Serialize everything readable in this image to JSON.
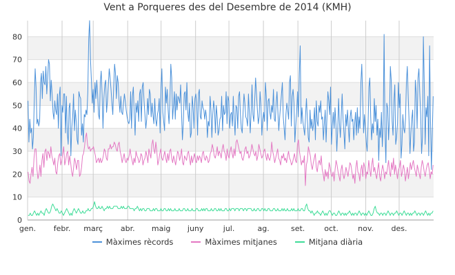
{
  "chart_data": {
    "type": "line",
    "title": "Vent a Porqueres des del Desembre de 2014 (KMH)",
    "xlabel": "",
    "ylabel": "",
    "ylim": [
      0,
      87
    ],
    "yticks": [
      0,
      10,
      20,
      30,
      40,
      50,
      60,
      70,
      80
    ],
    "grid": true,
    "legend_position": "bottom",
    "months": [
      "gen.",
      "febr.",
      "març",
      "abr.",
      "maig",
      "juny",
      "jul.",
      "ag.",
      "set.",
      "oct.",
      "nov.",
      "des."
    ],
    "x_description": "day of year (1-365)",
    "series": [
      {
        "name": "Màximes rècords",
        "color": "#4a90d9",
        "values": [
          52,
          34,
          44,
          38,
          40,
          31,
          36,
          52,
          66,
          58,
          42,
          44,
          41,
          43,
          60,
          64,
          53,
          65,
          60,
          59,
          67,
          55,
          62,
          70,
          68,
          52,
          61,
          55,
          47,
          44,
          52,
          48,
          46,
          55,
          40,
          54,
          58,
          28,
          50,
          47,
          55,
          55,
          38,
          54,
          38,
          33,
          49,
          51,
          28,
          40,
          45,
          55,
          39,
          48,
          43,
          35,
          33,
          56,
          54,
          53,
          37,
          42,
          34,
          46,
          45,
          48,
          46,
          56,
          79,
          88,
          70,
          61,
          51,
          57,
          47,
          60,
          53,
          61,
          55,
          46,
          44,
          60,
          65,
          55,
          40,
          53,
          59,
          61,
          47,
          52,
          59,
          66,
          62,
          57,
          51,
          46,
          58,
          68,
          64,
          53,
          63,
          60,
          52,
          47,
          54,
          47,
          46,
          51,
          55,
          52,
          48,
          45,
          43,
          42,
          44,
          56,
          40,
          54,
          58,
          46,
          37,
          51,
          47,
          52,
          43,
          55,
          57,
          43,
          58,
          60,
          52,
          46,
          40,
          44,
          53,
          46,
          57,
          55,
          45,
          51,
          46,
          42,
          53,
          44,
          41,
          46,
          48,
          53,
          38,
          58,
          66,
          47,
          43,
          39,
          58,
          51,
          57,
          48,
          42,
          52,
          68,
          62,
          44,
          50,
          56,
          44,
          55,
          48,
          54,
          53,
          51,
          59,
          47,
          35,
          42,
          55,
          56,
          48,
          60,
          47,
          43,
          51,
          36,
          38,
          54,
          49,
          40,
          53,
          55,
          51,
          37,
          55,
          57,
          45,
          44,
          52,
          49,
          48,
          44,
          48,
          45,
          36,
          43,
          41,
          54,
          48,
          36,
          46,
          52,
          48,
          38,
          50,
          45,
          37,
          39,
          44,
          45,
          54,
          39,
          50,
          46,
          47,
          56,
          42,
          54,
          52,
          40,
          46,
          47,
          41,
          54,
          44,
          37,
          50,
          49,
          40,
          54,
          56,
          46,
          40,
          38,
          47,
          55,
          51,
          45,
          44,
          41,
          55,
          47,
          38,
          47,
          59,
          46,
          43,
          52,
          62,
          55,
          48,
          42,
          45,
          56,
          50,
          37,
          44,
          47,
          43,
          60,
          54,
          39,
          52,
          53,
          47,
          44,
          50,
          47,
          57,
          44,
          43,
          51,
          56,
          47,
          39,
          45,
          50,
          55,
          60,
          45,
          40,
          35,
          46,
          51,
          48,
          44,
          60,
          63,
          41,
          54,
          57,
          51,
          34,
          41,
          47,
          56,
          45,
          64,
          76,
          42,
          49,
          43,
          40,
          37,
          46,
          53,
          44,
          36,
          34,
          48,
          40,
          44,
          39,
          42,
          49,
          35,
          52,
          43,
          41,
          50,
          47,
          52,
          44,
          45,
          35,
          42,
          48,
          34,
          45,
          56,
          52,
          46,
          58,
          33,
          41,
          47,
          40,
          49,
          42,
          30,
          39,
          53,
          42,
          36,
          46,
          55,
          44,
          38,
          31,
          46,
          41,
          48,
          40,
          34,
          45,
          48,
          43,
          44,
          35,
          42,
          47,
          37,
          49,
          38,
          45,
          40,
          60,
          68,
          53,
          38,
          46,
          40,
          34,
          30,
          41,
          58,
          62,
          45,
          35,
          42,
          38,
          53,
          43,
          50,
          37,
          44,
          26,
          40,
          36,
          47,
          32,
          42,
          81,
          39,
          25,
          51,
          49,
          35,
          44,
          67,
          61,
          43,
          37,
          52,
          59,
          33,
          36,
          42,
          60,
          49,
          55,
          27,
          33,
          46,
          40,
          38,
          44,
          60,
          67,
          54,
          43,
          29,
          38,
          44,
          48,
          30,
          34,
          61,
          55,
          40,
          62,
          66,
          55,
          46,
          29,
          36,
          80,
          60,
          33,
          49,
          45,
          54,
          28,
          76,
          43,
          22,
          38,
          54
        ]
      },
      {
        "name": "Màximes mitjanes",
        "color": "#e377c2",
        "values": [
          21,
          17,
          16,
          20,
          23,
          19,
          27,
          31,
          31,
          22,
          18,
          20,
          24,
          19,
          26,
          29,
          23,
          30,
          31,
          26,
          30,
          29,
          27,
          32,
          28,
          26,
          24,
          27,
          21,
          20,
          25,
          28,
          29,
          24,
          26,
          29,
          32,
          24,
          26,
          29,
          30,
          24,
          28,
          25,
          21,
          19,
          23,
          27,
          25,
          22,
          26,
          26,
          19,
          20,
          23,
          28,
          29,
          32,
          36,
          38,
          33,
          31,
          32,
          30,
          31,
          31,
          32,
          30,
          28,
          25,
          26,
          27,
          25,
          27,
          25,
          26,
          28,
          31,
          30,
          27,
          26,
          31,
          31,
          33,
          31,
          32,
          32,
          34,
          33,
          31,
          30,
          33,
          34,
          30,
          28,
          25,
          27,
          29,
          26,
          25,
          27,
          26,
          28,
          31,
          28,
          26,
          24,
          27,
          25,
          30,
          28,
          27,
          25,
          26,
          29,
          28,
          24,
          26,
          27,
          30,
          28,
          25,
          31,
          29,
          27,
          33,
          35,
          31,
          29,
          34,
          30,
          24,
          26,
          29,
          31,
          27,
          26,
          28,
          30,
          27,
          25,
          29,
          26,
          30,
          31,
          27,
          25,
          28,
          26,
          24,
          27,
          30,
          29,
          26,
          28,
          31,
          25,
          24,
          28,
          27,
          26,
          29,
          30,
          27,
          24,
          28,
          25,
          27,
          29,
          26,
          25,
          28,
          26,
          28,
          27,
          25,
          29,
          30,
          27,
          26,
          28,
          27,
          25,
          26,
          29,
          30,
          33,
          31,
          28,
          27,
          29,
          32,
          28,
          30,
          29,
          27,
          31,
          33,
          30,
          29,
          26,
          31,
          28,
          27,
          30,
          32,
          29,
          27,
          31,
          28,
          34,
          35,
          33,
          31,
          29,
          30,
          27,
          26,
          28,
          31,
          32,
          29,
          30,
          27,
          28,
          30,
          33,
          31,
          29,
          28,
          30,
          26,
          28,
          33,
          31,
          29,
          27,
          28,
          30,
          31,
          28,
          26,
          29,
          27,
          26,
          28,
          34,
          30,
          28,
          25,
          27,
          29,
          31,
          27,
          26,
          24,
          28,
          27,
          29,
          26,
          27,
          25,
          28,
          30,
          27,
          26,
          24,
          25,
          27,
          29,
          26,
          25,
          33,
          35,
          30,
          27,
          24,
          26,
          25,
          28,
          15,
          24,
          26,
          32,
          30,
          28,
          24,
          22,
          25,
          27,
          29,
          23,
          21,
          25,
          26,
          24,
          28,
          22,
          20,
          17,
          22,
          19,
          21,
          18,
          25,
          23,
          20,
          19,
          21,
          17,
          22,
          26,
          24,
          21,
          19,
          17,
          22,
          24,
          20,
          18,
          20,
          23,
          21,
          19,
          22,
          25,
          24,
          21,
          18,
          20,
          16,
          23,
          26,
          21,
          20,
          17,
          22,
          24,
          19,
          25,
          23,
          18,
          21,
          20,
          26,
          22,
          19,
          24,
          27,
          21,
          23,
          20,
          18,
          22,
          25,
          19,
          17,
          21,
          24,
          22,
          18,
          21,
          20,
          23,
          26,
          21,
          19,
          25,
          22,
          27,
          20,
          24,
          21,
          18,
          22,
          23,
          26,
          19,
          21,
          24,
          22,
          17,
          20,
          23,
          18,
          21,
          25,
          22,
          24,
          26,
          23,
          21,
          19,
          24,
          22,
          20,
          18,
          23,
          26,
          24,
          21,
          19,
          22,
          24,
          25,
          22,
          18,
          21,
          20,
          24
        ]
      },
      {
        "name": "Mitjana diària",
        "color": "#3ddc97",
        "values": [
          2,
          2,
          3,
          2,
          2,
          3,
          4,
          3,
          2,
          3,
          2,
          3,
          4,
          3,
          3,
          2,
          4,
          5,
          4,
          3,
          3,
          4,
          6,
          7,
          6,
          5,
          4,
          5,
          4,
          3,
          3,
          4,
          3,
          2,
          3,
          4,
          5,
          4,
          3,
          2,
          3,
          2,
          4,
          5,
          4,
          3,
          4,
          5,
          4,
          3,
          3,
          4,
          3,
          3,
          4,
          4,
          5,
          4,
          4,
          5,
          5,
          6,
          8,
          6,
          5,
          5,
          6,
          5,
          5,
          6,
          5,
          4,
          5,
          5,
          6,
          5,
          6,
          5,
          5,
          5,
          6,
          6,
          6,
          6,
          5,
          5,
          5,
          6,
          5,
          6,
          5,
          5,
          5,
          6,
          6,
          5,
          5,
          5,
          5,
          4,
          5,
          5,
          6,
          5,
          4,
          5,
          4,
          5,
          5,
          4,
          4,
          5,
          5,
          5,
          4,
          4,
          4,
          5,
          4,
          5,
          5,
          4,
          4,
          4,
          5,
          4,
          4,
          5,
          5,
          4,
          4,
          5,
          4,
          5,
          4,
          4,
          4,
          5,
          4,
          4,
          4,
          5,
          4,
          4,
          4,
          5,
          5,
          4,
          4,
          5,
          4,
          4,
          4,
          5,
          4,
          4,
          4,
          5,
          5,
          4,
          4,
          4,
          5,
          4,
          5,
          4,
          5,
          5,
          4,
          4,
          4,
          5,
          4,
          4,
          5,
          5,
          4,
          4,
          5,
          4,
          5,
          4,
          4,
          4,
          5,
          5,
          4,
          4,
          5,
          4,
          5,
          5,
          5,
          4,
          5,
          5,
          5,
          4,
          5,
          5,
          5,
          4,
          5,
          5,
          4,
          5,
          5,
          5,
          5,
          4,
          4,
          5,
          4,
          4,
          5,
          5,
          4,
          4,
          5,
          5,
          4,
          5,
          4,
          4,
          5,
          5,
          4,
          4,
          4,
          5,
          5,
          4,
          4,
          5,
          4,
          4,
          4,
          5,
          4,
          5,
          4,
          4,
          5,
          4,
          4,
          4,
          5,
          4,
          5,
          4,
          4,
          4,
          5,
          4,
          4,
          5,
          5,
          4,
          4,
          6,
          7,
          5,
          4,
          4,
          3,
          4,
          3,
          2,
          3,
          3,
          4,
          3,
          3,
          2,
          3,
          4,
          3,
          2,
          3,
          2,
          3,
          4,
          4,
          3,
          2,
          3,
          3,
          2,
          2,
          3,
          4,
          3,
          2,
          3,
          3,
          2,
          3,
          2,
          3,
          3,
          4,
          3,
          2,
          3,
          2,
          3,
          3,
          2,
          3,
          4,
          3,
          2,
          3,
          3,
          2,
          3,
          2,
          3,
          4,
          3,
          2,
          2,
          3,
          5,
          6,
          4,
          3,
          3,
          2,
          3,
          3,
          2,
          3,
          3,
          2,
          3,
          4,
          3,
          2,
          3,
          3,
          2,
          3,
          3,
          4,
          3,
          2,
          3,
          3,
          2,
          3,
          4,
          3,
          2,
          3,
          3,
          2,
          3,
          2,
          3,
          3,
          4,
          3,
          2,
          3,
          3,
          2,
          3,
          3,
          2,
          3,
          4,
          3,
          2,
          3,
          2,
          3,
          3,
          4
        ]
      }
    ]
  }
}
